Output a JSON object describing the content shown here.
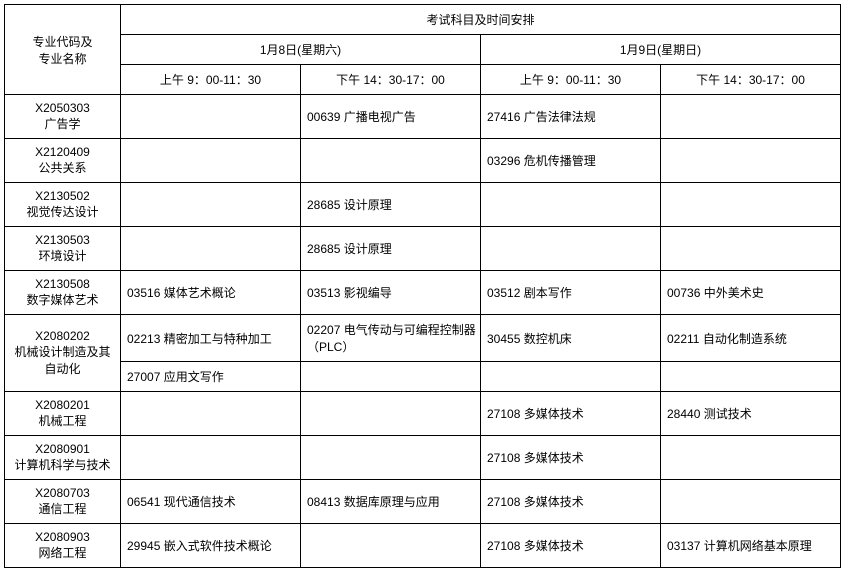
{
  "header": {
    "major_col": "专业代码及\n专业名称",
    "exam_header": "考试科目及时间安排",
    "day1": "1月8日(星期六)",
    "day2": "1月9日(星期日)",
    "slot_am": "上午 9：00-11：30",
    "slot_pm": "下午 14：30-17：00"
  },
  "rows": [
    {
      "major": "X2050303\n广告学",
      "cells": [
        "",
        "00639 广播电视广告",
        "27416 广告法律法规",
        ""
      ]
    },
    {
      "major": "X2120409\n公共关系",
      "cells": [
        "",
        "",
        "03296 危机传播管理",
        ""
      ]
    },
    {
      "major": "X2130502\n视觉传达设计",
      "cells": [
        "",
        "28685 设计原理",
        "",
        ""
      ]
    },
    {
      "major": "X2130503\n环境设计",
      "cells": [
        "",
        "28685 设计原理",
        "",
        ""
      ]
    },
    {
      "major": "X2130508\n数字媒体艺术",
      "cells": [
        "03516 媒体艺术概论",
        "03513 影视编导",
        "03512 剧本写作",
        "00736 中外美术史"
      ]
    },
    {
      "major": "X2080202\n机械设计制造及其自动化",
      "rowspan": 2,
      "cellsRows": [
        [
          "02213 精密加工与特种加工",
          "02207 电气传动与可编程控制器（PLC）",
          "30455 数控机床",
          "02211 自动化制造系统"
        ],
        [
          "27007 应用文写作",
          "",
          "",
          ""
        ]
      ]
    },
    {
      "major": "X2080201\n机械工程",
      "cells": [
        "",
        "",
        "27108 多媒体技术",
        "28440 测试技术"
      ]
    },
    {
      "major": "X2080901\n计算机科学与技术",
      "cells": [
        "",
        "",
        "27108 多媒体技术",
        ""
      ]
    },
    {
      "major": "X2080703\n通信工程",
      "cells": [
        "06541 现代通信技术",
        "08413 数据库原理与应用",
        "27108 多媒体技术",
        ""
      ]
    },
    {
      "major": "X2080903\n网络工程",
      "cells": [
        "29945 嵌入式软件技术概论",
        "",
        "27108 多媒体技术",
        "03137 计算机网络基本原理"
      ]
    }
  ]
}
